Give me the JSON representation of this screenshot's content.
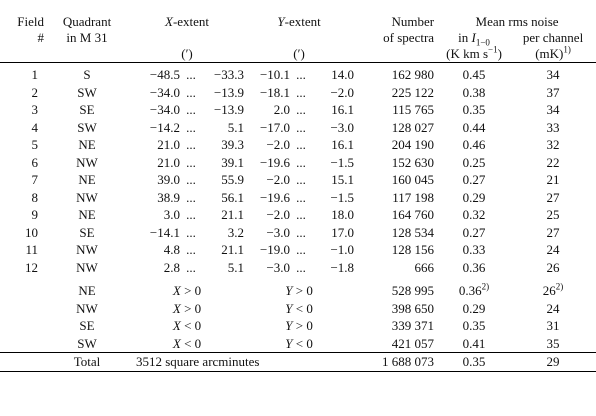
{
  "header": {
    "field_1": "Field",
    "field_2": "#",
    "quadrant_1": "Quadrant",
    "quadrant_2": "in M 31",
    "xextent_var": "X",
    "xextent_suffix": "-extent",
    "xextent_unit": "(′)",
    "yextent_var": "Y",
    "yextent_suffix": "-extent",
    "yextent_unit": "(′)",
    "number_1": "Number",
    "number_2": "of spectra",
    "noise_title": "Mean rms noise",
    "noise_in": "in",
    "noise_i": "I",
    "noise_i_sub": "1−0",
    "noise_i_unit_a": "(K km s",
    "noise_i_unit_sup": "−1",
    "noise_i_unit_b": ")",
    "noise_pc": "per channel",
    "noise_pc_unit": "(mK)",
    "noise_pc_unit_sup": "1)"
  },
  "rows": [
    {
      "field": "1",
      "quadrant": "S",
      "x_from": "−48.5",
      "x_to": "−33.3",
      "y_from": "−10.1",
      "y_to": "14.0",
      "n": "162 980",
      "i": "0.45",
      "pc": "34"
    },
    {
      "field": "2",
      "quadrant": "SW",
      "x_from": "−34.0",
      "x_to": "−13.9",
      "y_from": "−18.1",
      "y_to": "−2.0",
      "n": "225 122",
      "i": "0.38",
      "pc": "37"
    },
    {
      "field": "3",
      "quadrant": "SE",
      "x_from": "−34.0",
      "x_to": "−13.9",
      "y_from": "2.0",
      "y_to": "16.1",
      "n": "115 765",
      "i": "0.35",
      "pc": "34"
    },
    {
      "field": "4",
      "quadrant": "SW",
      "x_from": "−14.2",
      "x_to": "5.1",
      "y_from": "−17.0",
      "y_to": "−3.0",
      "n": "128 027",
      "i": "0.44",
      "pc": "33"
    },
    {
      "field": "5",
      "quadrant": "NE",
      "x_from": "21.0",
      "x_to": "39.3",
      "y_from": "−2.0",
      "y_to": "16.1",
      "n": "204 190",
      "i": "0.46",
      "pc": "32"
    },
    {
      "field": "6",
      "quadrant": "NW",
      "x_from": "21.0",
      "x_to": "39.1",
      "y_from": "−19.6",
      "y_to": "−1.5",
      "n": "152 630",
      "i": "0.25",
      "pc": "22"
    },
    {
      "field": "7",
      "quadrant": "NE",
      "x_from": "39.0",
      "x_to": "55.9",
      "y_from": "−2.0",
      "y_to": "15.1",
      "n": "160 045",
      "i": "0.27",
      "pc": "21"
    },
    {
      "field": "8",
      "quadrant": "NW",
      "x_from": "38.9",
      "x_to": "56.1",
      "y_from": "−19.6",
      "y_to": "−1.5",
      "n": "117 198",
      "i": "0.29",
      "pc": "27"
    },
    {
      "field": "9",
      "quadrant": "NE",
      "x_from": "3.0",
      "x_to": "21.1",
      "y_from": "−2.0",
      "y_to": "18.0",
      "n": "164 760",
      "i": "0.32",
      "pc": "25"
    },
    {
      "field": "10",
      "quadrant": "SE",
      "x_from": "−14.1",
      "x_to": "3.2",
      "y_from": "−3.0",
      "y_to": "17.0",
      "n": "128 534",
      "i": "0.27",
      "pc": "27"
    },
    {
      "field": "11",
      "quadrant": "NW",
      "x_from": "4.8",
      "x_to": "21.1",
      "y_from": "−19.0",
      "y_to": "−1.0",
      "n": "128 156",
      "i": "0.33",
      "pc": "24"
    },
    {
      "field": "12",
      "quadrant": "NW",
      "x_from": "2.8",
      "x_to": "5.1",
      "y_from": "−3.0",
      "y_to": "−1.8",
      "n": "666",
      "i": "0.36",
      "pc": "26"
    }
  ],
  "quadrants": [
    {
      "quadrant": "NE",
      "x_var": "X",
      "x_rel": "> 0",
      "y_var": "Y",
      "y_rel": "> 0",
      "n": "528 995",
      "i": "0.36",
      "i_sup": "2)",
      "pc": "26",
      "pc_sup": "2)"
    },
    {
      "quadrant": "NW",
      "x_var": "X",
      "x_rel": "> 0",
      "y_var": "Y",
      "y_rel": "< 0",
      "n": "398 650",
      "i": "0.29",
      "i_sup": "",
      "pc": "24",
      "pc_sup": ""
    },
    {
      "quadrant": "SE",
      "x_var": "X",
      "x_rel": "< 0",
      "y_var": "Y",
      "y_rel": "> 0",
      "n": "339 371",
      "i": "0.35",
      "i_sup": "",
      "pc": "31",
      "pc_sup": ""
    },
    {
      "quadrant": "SW",
      "x_var": "X",
      "x_rel": "< 0",
      "y_var": "Y",
      "y_rel": "< 0",
      "n": "421 057",
      "i": "0.41",
      "i_sup": "",
      "pc": "35",
      "pc_sup": ""
    }
  ],
  "total": {
    "label": "Total",
    "extent": "3512 square arcminutes",
    "n": "1 688 073",
    "i": "0.35",
    "pc": "29"
  },
  "ellipsis": "..."
}
